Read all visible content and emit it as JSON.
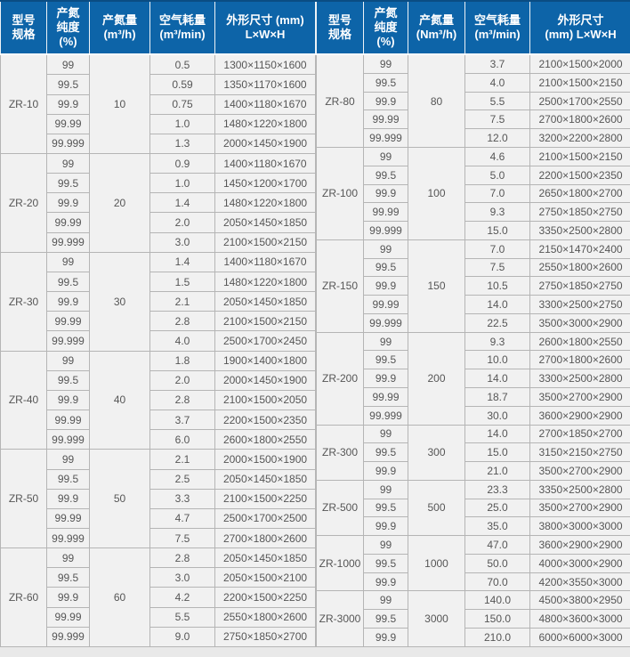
{
  "colors": {
    "header_bg": "#0d64a8",
    "header_text": "#ffffff",
    "cell_bg": "#f1f1f1",
    "cell_border": "#b5b5b5",
    "cell_text": "#565656",
    "page_bg": "#e9e9e9"
  },
  "left_table": {
    "headers": {
      "model": "型号\n规格",
      "purity": "产氮\n纯度\n(%)",
      "capacity": "产氮量\n(m³/h)",
      "air": "空气耗量\n(m³/min)",
      "dims": "外形尺寸 (mm)\nL×W×H"
    },
    "groups": [
      {
        "model": "ZR-10",
        "capacity": "10",
        "rows": [
          {
            "purity": "99",
            "air": "0.5",
            "dims": "1300×1150×1600"
          },
          {
            "purity": "99.5",
            "air": "0.59",
            "dims": "1350×1170×1600"
          },
          {
            "purity": "99.9",
            "air": "0.75",
            "dims": "1400×1180×1670"
          },
          {
            "purity": "99.99",
            "air": "1.0",
            "dims": "1480×1220×1800"
          },
          {
            "purity": "99.999",
            "air": "1.3",
            "dims": "2000×1450×1900"
          }
        ]
      },
      {
        "model": "ZR-20",
        "capacity": "20",
        "rows": [
          {
            "purity": "99",
            "air": "0.9",
            "dims": "1400×1180×1670"
          },
          {
            "purity": "99.5",
            "air": "1.0",
            "dims": "1450×1200×1700"
          },
          {
            "purity": "99.9",
            "air": "1.4",
            "dims": "1480×1220×1800"
          },
          {
            "purity": "99.99",
            "air": "2.0",
            "dims": "2050×1450×1850"
          },
          {
            "purity": "99.999",
            "air": "3.0",
            "dims": "2100×1500×2150"
          }
        ]
      },
      {
        "model": "ZR-30",
        "capacity": "30",
        "rows": [
          {
            "purity": "99",
            "air": "1.4",
            "dims": "1400×1180×1670"
          },
          {
            "purity": "99.5",
            "air": "1.5",
            "dims": "1480×1220×1800"
          },
          {
            "purity": "99.9",
            "air": "2.1",
            "dims": "2050×1450×1850"
          },
          {
            "purity": "99.99",
            "air": "2.8",
            "dims": "2100×1500×2150"
          },
          {
            "purity": "99.999",
            "air": "4.0",
            "dims": "2500×1700×2450"
          }
        ]
      },
      {
        "model": "ZR-40",
        "capacity": "40",
        "rows": [
          {
            "purity": "99",
            "air": "1.8",
            "dims": "1900×1400×1800"
          },
          {
            "purity": "99.5",
            "air": "2.0",
            "dims": "2000×1450×1900"
          },
          {
            "purity": "99.9",
            "air": "2.8",
            "dims": "2100×1500×2050"
          },
          {
            "purity": "99.99",
            "air": "3.7",
            "dims": "2200×1500×2350"
          },
          {
            "purity": "99.999",
            "air": "6.0",
            "dims": "2600×1800×2550"
          }
        ]
      },
      {
        "model": "ZR-50",
        "capacity": "50",
        "rows": [
          {
            "purity": "99",
            "air": "2.1",
            "dims": "2000×1500×1900"
          },
          {
            "purity": "99.5",
            "air": "2.5",
            "dims": "2050×1450×1850"
          },
          {
            "purity": "99.9",
            "air": "3.3",
            "dims": "2100×1500×2250"
          },
          {
            "purity": "99.99",
            "air": "4.7",
            "dims": "2500×1700×2500"
          },
          {
            "purity": "99.999",
            "air": "7.5",
            "dims": "2700×1800×2600"
          }
        ]
      },
      {
        "model": "ZR-60",
        "capacity": "60",
        "rows": [
          {
            "purity": "99",
            "air": "2.8",
            "dims": "2050×1450×1850"
          },
          {
            "purity": "99.5",
            "air": "3.0",
            "dims": "2050×1500×2100"
          },
          {
            "purity": "99.9",
            "air": "4.2",
            "dims": "2200×1500×2250"
          },
          {
            "purity": "99.99",
            "air": "5.5",
            "dims": "2550×1800×2600"
          },
          {
            "purity": "99.999",
            "air": "9.0",
            "dims": "2750×1850×2700"
          }
        ]
      }
    ]
  },
  "right_table": {
    "headers": {
      "model": "型号\n规格",
      "purity": "产氮\n纯度\n(%)",
      "capacity": "产氮量\n(Nm³/h)",
      "air": "空气耗量\n(m³/min)",
      "dims": "外形尺寸\n(mm)  L×W×H"
    },
    "groups": [
      {
        "model": "ZR-80",
        "capacity": "80",
        "rows": [
          {
            "purity": "99",
            "air": "3.7",
            "dims": "2100×1500×2000"
          },
          {
            "purity": "99.5",
            "air": "4.0",
            "dims": "2100×1500×2150"
          },
          {
            "purity": "99.9",
            "air": "5.5",
            "dims": "2500×1700×2550"
          },
          {
            "purity": "99.99",
            "air": "7.5",
            "dims": "2700×1800×2600"
          },
          {
            "purity": "99.999",
            "air": "12.0",
            "dims": "3200×2200×2800"
          }
        ]
      },
      {
        "model": "ZR-100",
        "capacity": "100",
        "rows": [
          {
            "purity": "99",
            "air": "4.6",
            "dims": "2100×1500×2150"
          },
          {
            "purity": "99.5",
            "air": "5.0",
            "dims": "2200×1500×2350"
          },
          {
            "purity": "99.9",
            "air": "7.0",
            "dims": "2650×1800×2700"
          },
          {
            "purity": "99.99",
            "air": "9.3",
            "dims": "2750×1850×2750"
          },
          {
            "purity": "99.999",
            "air": "15.0",
            "dims": "3350×2500×2800"
          }
        ]
      },
      {
        "model": "ZR-150",
        "capacity": "150",
        "rows": [
          {
            "purity": "99",
            "air": "7.0",
            "dims": "2150×1470×2400"
          },
          {
            "purity": "99.5",
            "air": "7.5",
            "dims": "2550×1800×2600"
          },
          {
            "purity": "99.9",
            "air": "10.5",
            "dims": "2750×1850×2750"
          },
          {
            "purity": "99.99",
            "air": "14.0",
            "dims": "3300×2500×2750"
          },
          {
            "purity": "99.999",
            "air": "22.5",
            "dims": "3500×3000×2900"
          }
        ]
      },
      {
        "model": "ZR-200",
        "capacity": "200",
        "rows": [
          {
            "purity": "99",
            "air": "9.3",
            "dims": "2600×1800×2550"
          },
          {
            "purity": "99.5",
            "air": "10.0",
            "dims": "2700×1800×2600"
          },
          {
            "purity": "99.9",
            "air": "14.0",
            "dims": "3300×2500×2800"
          },
          {
            "purity": "99.99",
            "air": "18.7",
            "dims": "3500×2700×2900"
          },
          {
            "purity": "99.999",
            "air": "30.0",
            "dims": "3600×2900×2900"
          }
        ]
      },
      {
        "model": "ZR-300",
        "capacity": "300",
        "rows": [
          {
            "purity": "99",
            "air": "14.0",
            "dims": "2700×1850×2700"
          },
          {
            "purity": "99.5",
            "air": "15.0",
            "dims": "3150×2150×2750"
          },
          {
            "purity": "99.9",
            "air": "21.0",
            "dims": "3500×2700×2900"
          }
        ]
      },
      {
        "model": "ZR-500",
        "capacity": "500",
        "rows": [
          {
            "purity": "99",
            "air": "23.3",
            "dims": "3350×2500×2800"
          },
          {
            "purity": "99.5",
            "air": "25.0",
            "dims": "3500×2700×2900"
          },
          {
            "purity": "99.9",
            "air": "35.0",
            "dims": "3800×3000×3000"
          }
        ]
      },
      {
        "model": "ZR-1000",
        "capacity": "1000",
        "rows": [
          {
            "purity": "99",
            "air": "47.0",
            "dims": "3600×2900×2900"
          },
          {
            "purity": "99.5",
            "air": "50.0",
            "dims": "4000×3000×2900"
          },
          {
            "purity": "99.9",
            "air": "70.0",
            "dims": "4200×3550×3000"
          }
        ]
      },
      {
        "model": "ZR-3000",
        "capacity": "3000",
        "rows": [
          {
            "purity": "99",
            "air": "140.0",
            "dims": "4500×3800×2950"
          },
          {
            "purity": "99.5",
            "air": "150.0",
            "dims": "4800×3600×3000"
          },
          {
            "purity": "99.9",
            "air": "210.0",
            "dims": "6000×6000×3000"
          }
        ]
      }
    ]
  }
}
